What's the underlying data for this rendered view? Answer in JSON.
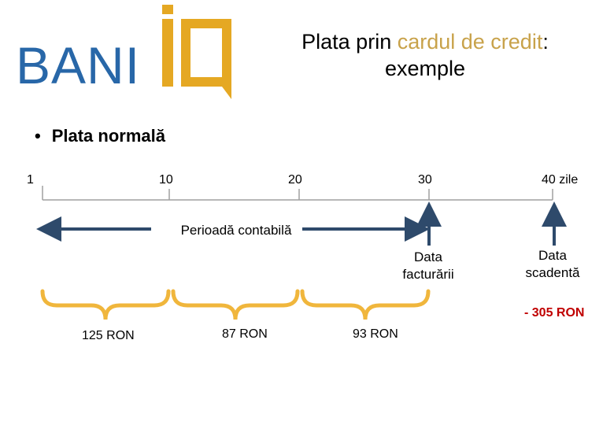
{
  "logo": {
    "text": "BANI",
    "brand_blue": "#2867A8",
    "brand_gold": "#E5A823"
  },
  "title": {
    "part1": "Plata prin ",
    "accent": "cardul de credit",
    "part2": ":",
    "line2": "exemple"
  },
  "bullet": "Plata normală",
  "ticks": [
    "1",
    "10",
    "20",
    "30",
    "40 zile"
  ],
  "period_label": "Perioadă contabilă",
  "billing_date": [
    "Data",
    "facturării"
  ],
  "due_date": [
    "Data",
    "scadentă"
  ],
  "amounts": [
    "125 RON",
    "87 RON",
    "93 RON"
  ],
  "due_amount": "- 305 RON",
  "colors": {
    "arrow": "#2E4A6B",
    "brace": "#F0B63C",
    "red": "#C00000"
  }
}
